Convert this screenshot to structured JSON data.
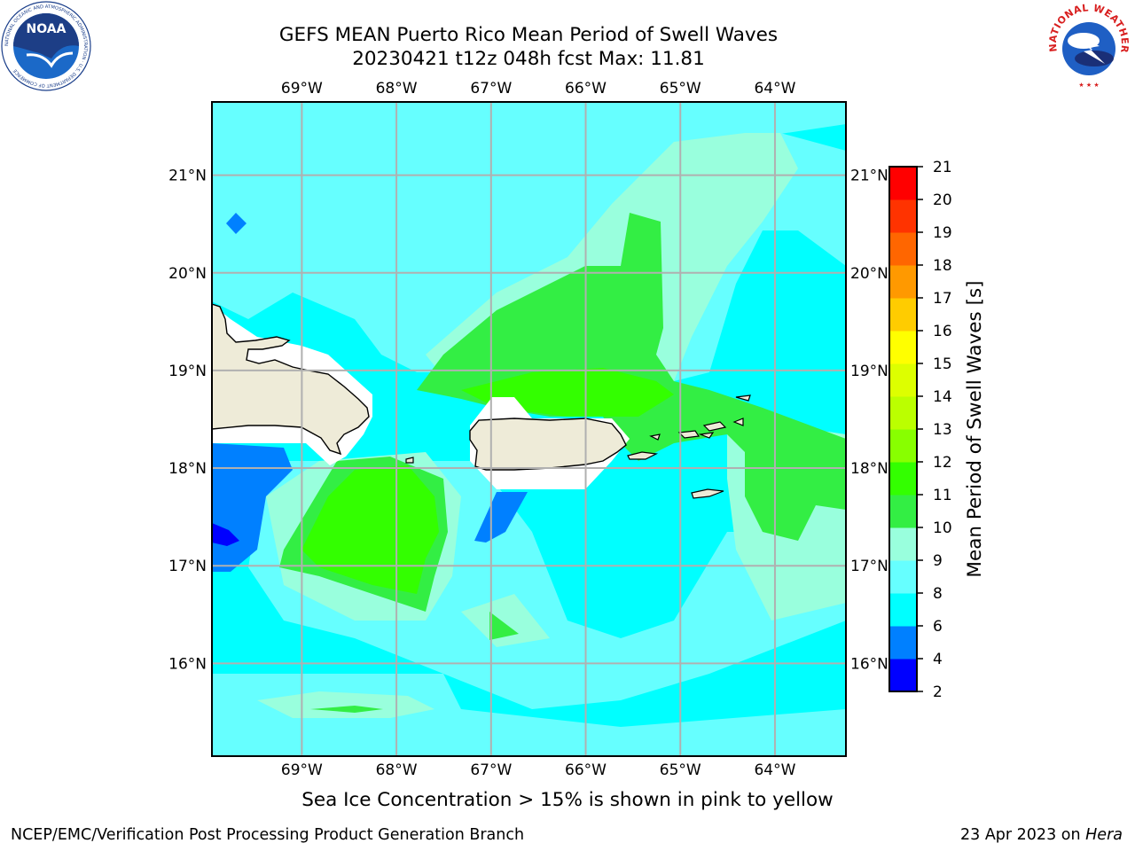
{
  "title": {
    "line1": "GEFS MEAN Puerto Rico Mean Period of Swell Waves",
    "line2": "20230421 t12z 048h fcst   Max: 11.81"
  },
  "logos": {
    "left": {
      "icon": "noaa-logo",
      "text": "NOAA",
      "ring": "NATIONAL OCEANIC AND ATMOSPHERIC ADMINISTRATION · U.S. DEPARTMENT OF COMMERCE"
    },
    "right": {
      "icon": "nws-logo",
      "ring": "NATIONAL WEATHER SERVICE"
    }
  },
  "map": {
    "lon_range": [
      -69.95,
      -63.25
    ],
    "lat_range": [
      15.05,
      21.75
    ],
    "grid": true,
    "lon_ticks": [
      {
        "value": -69,
        "label": "69°W"
      },
      {
        "value": -68,
        "label": "68°W"
      },
      {
        "value": -67,
        "label": "67°W"
      },
      {
        "value": -66,
        "label": "66°W"
      },
      {
        "value": -65,
        "label": "65°W"
      },
      {
        "value": -64,
        "label": "64°W"
      }
    ],
    "lat_ticks": [
      {
        "value": 21,
        "label": "21°N"
      },
      {
        "value": 20,
        "label": "20°N"
      },
      {
        "value": 19,
        "label": "19°N"
      },
      {
        "value": 18,
        "label": "18°N"
      },
      {
        "value": 17,
        "label": "17°N"
      },
      {
        "value": 16,
        "label": "16°N"
      }
    ],
    "background_color": "#00ffff",
    "land_color": "#eeebd8"
  },
  "colorbar": {
    "label": "Mean Period of Swell Waves [s]",
    "ticks": [
      "2",
      "4",
      "6",
      "8",
      "9",
      "10",
      "11",
      "12",
      "13",
      "14",
      "15",
      "16",
      "17",
      "18",
      "19",
      "20",
      "21"
    ],
    "colors": [
      "#0000ff",
      "#0080ff",
      "#00ffff",
      "#66ffff",
      "#99ffdd",
      "#33ee44",
      "#33ff00",
      "#88ff00",
      "#bbff00",
      "#ddff00",
      "#ffff00",
      "#ffcc00",
      "#ff9900",
      "#ff6600",
      "#ff3300",
      "#ff0000"
    ]
  },
  "footer": {
    "note": "Sea Ice Concentration > 15% is shown in pink to yellow",
    "credit_left": "NCEP/EMC/Verification Post Processing Product Generation Branch",
    "credit_date": "23 Apr 2023 on ",
    "credit_host": "Hera"
  }
}
